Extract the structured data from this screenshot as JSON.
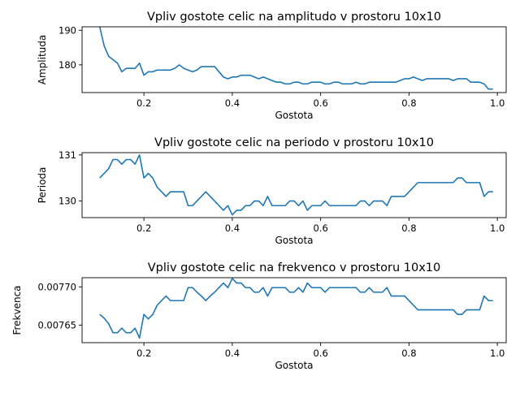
{
  "chart_data": [
    {
      "type": "line",
      "title": "Vpliv gostote celic na amplitudo v prostoru 10x10",
      "xlabel": "Gostota",
      "ylabel": "Amplituda",
      "xlim": [
        0.06,
        1.02
      ],
      "ylim": [
        172,
        191
      ],
      "xticks": [
        0.2,
        0.4,
        0.6,
        0.8,
        1.0
      ],
      "xtick_labels": [
        "0.2",
        "0.4",
        "0.6",
        "0.8",
        "1.0"
      ],
      "yticks": [
        180,
        190
      ],
      "ytick_labels": [
        "180",
        "190"
      ],
      "grid": false,
      "series": [
        {
          "color": "#1f77b4",
          "x": [
            0.1,
            0.11,
            0.12,
            0.13,
            0.14,
            0.15,
            0.16,
            0.17,
            0.18,
            0.19,
            0.2,
            0.21,
            0.22,
            0.23,
            0.24,
            0.25,
            0.26,
            0.27,
            0.28,
            0.29,
            0.3,
            0.31,
            0.32,
            0.33,
            0.34,
            0.35,
            0.36,
            0.37,
            0.38,
            0.39,
            0.4,
            0.41,
            0.42,
            0.43,
            0.44,
            0.45,
            0.46,
            0.47,
            0.48,
            0.49,
            0.5,
            0.51,
            0.52,
            0.53,
            0.54,
            0.55,
            0.56,
            0.57,
            0.58,
            0.59,
            0.6,
            0.61,
            0.62,
            0.63,
            0.64,
            0.65,
            0.66,
            0.67,
            0.68,
            0.69,
            0.7,
            0.71,
            0.72,
            0.73,
            0.74,
            0.75,
            0.76,
            0.77,
            0.78,
            0.79,
            0.8,
            0.81,
            0.82,
            0.83,
            0.84,
            0.85,
            0.86,
            0.87,
            0.88,
            0.89,
            0.9,
            0.91,
            0.92,
            0.93,
            0.94,
            0.95,
            0.96,
            0.97,
            0.98,
            0.99
          ],
          "y": [
            191.0,
            185.5,
            182.5,
            181.5,
            180.5,
            178.0,
            179.0,
            179.0,
            179.0,
            180.5,
            177.0,
            178.0,
            178.0,
            178.5,
            178.5,
            178.5,
            178.5,
            179.0,
            180.0,
            179.0,
            178.5,
            178.0,
            178.5,
            179.5,
            179.5,
            179.5,
            179.5,
            178.0,
            176.5,
            176.0,
            176.5,
            176.5,
            177.0,
            177.0,
            177.0,
            176.5,
            176.0,
            176.5,
            176.0,
            175.5,
            175.0,
            175.0,
            174.5,
            174.5,
            175.0,
            175.0,
            174.5,
            174.5,
            175.0,
            175.0,
            175.0,
            174.5,
            174.5,
            175.0,
            175.0,
            174.5,
            174.5,
            174.5,
            175.0,
            174.5,
            174.5,
            175.0,
            175.0,
            175.0,
            175.0,
            175.0,
            175.0,
            175.0,
            175.5,
            176.0,
            176.0,
            176.5,
            176.0,
            175.5,
            176.0,
            176.0,
            176.0,
            176.0,
            176.0,
            176.0,
            175.5,
            176.0,
            176.0,
            176.0,
            175.0,
            175.0,
            175.0,
            174.5,
            173.0,
            173.0
          ]
        }
      ]
    },
    {
      "type": "line",
      "title": "Vpliv gostote celic na periodo v prostoru 10x10",
      "xlabel": "Gostota",
      "ylabel": "Perioda",
      "xlim": [
        0.06,
        1.02
      ],
      "ylim": [
        129.64,
        131.05
      ],
      "xticks": [
        0.2,
        0.4,
        0.6,
        0.8,
        1.0
      ],
      "xtick_labels": [
        "0.2",
        "0.4",
        "0.6",
        "0.8",
        "1.0"
      ],
      "yticks": [
        130,
        131
      ],
      "ytick_labels": [
        "130",
        "131"
      ],
      "grid": false,
      "series": [
        {
          "color": "#1f77b4",
          "x": [
            0.1,
            0.11,
            0.12,
            0.13,
            0.14,
            0.15,
            0.16,
            0.17,
            0.18,
            0.19,
            0.2,
            0.21,
            0.22,
            0.23,
            0.24,
            0.25,
            0.26,
            0.27,
            0.28,
            0.29,
            0.3,
            0.31,
            0.32,
            0.33,
            0.34,
            0.35,
            0.36,
            0.37,
            0.38,
            0.39,
            0.4,
            0.41,
            0.42,
            0.43,
            0.44,
            0.45,
            0.46,
            0.47,
            0.48,
            0.49,
            0.5,
            0.51,
            0.52,
            0.53,
            0.54,
            0.55,
            0.56,
            0.57,
            0.58,
            0.59,
            0.6,
            0.61,
            0.62,
            0.63,
            0.64,
            0.65,
            0.66,
            0.67,
            0.68,
            0.69,
            0.7,
            0.71,
            0.72,
            0.73,
            0.74,
            0.75,
            0.76,
            0.77,
            0.78,
            0.79,
            0.8,
            0.81,
            0.82,
            0.83,
            0.84,
            0.85,
            0.86,
            0.87,
            0.88,
            0.89,
            0.9,
            0.91,
            0.92,
            0.93,
            0.94,
            0.95,
            0.96,
            0.97,
            0.98,
            0.99
          ],
          "y": [
            130.5,
            130.6,
            130.7,
            130.9,
            130.9,
            130.8,
            130.9,
            130.9,
            130.8,
            131.0,
            130.5,
            130.6,
            130.5,
            130.3,
            130.2,
            130.1,
            130.2,
            130.2,
            130.2,
            130.2,
            129.9,
            129.9,
            130.0,
            130.1,
            130.2,
            130.1,
            130.0,
            129.9,
            129.8,
            129.9,
            129.7,
            129.8,
            129.8,
            129.9,
            129.9,
            130.0,
            130.0,
            129.9,
            130.1,
            129.9,
            129.9,
            129.9,
            129.9,
            130.0,
            130.0,
            129.9,
            130.0,
            129.8,
            129.9,
            129.9,
            129.9,
            130.0,
            129.9,
            129.9,
            129.9,
            129.9,
            129.9,
            129.9,
            129.9,
            130.0,
            130.0,
            129.9,
            130.0,
            130.0,
            130.0,
            129.9,
            130.1,
            130.1,
            130.1,
            130.1,
            130.2,
            130.3,
            130.4,
            130.4,
            130.4,
            130.4,
            130.4,
            130.4,
            130.4,
            130.4,
            130.4,
            130.5,
            130.5,
            130.4,
            130.4,
            130.4,
            130.4,
            130.1,
            130.2,
            130.2
          ]
        }
      ]
    },
    {
      "type": "line",
      "title": "Vpliv gostote celic na frekvenco v prostoru 10x10",
      "xlabel": "Gostota",
      "ylabel": "Frekvenca",
      "xlim": [
        0.06,
        1.02
      ],
      "ylim": [
        0.007627,
        0.007712
      ],
      "xticks": [
        0.2,
        0.4,
        0.6,
        0.8,
        1.0
      ],
      "xtick_labels": [
        "0.2",
        "0.4",
        "0.6",
        "0.8",
        "1.0"
      ],
      "yticks": [
        0.00765,
        0.0077
      ],
      "ytick_labels": [
        "0.00765",
        "0.00770"
      ],
      "grid": false,
      "series": [
        {
          "color": "#1f77b4",
          "x": [
            0.1,
            0.11,
            0.12,
            0.13,
            0.14,
            0.15,
            0.16,
            0.17,
            0.18,
            0.19,
            0.2,
            0.21,
            0.22,
            0.23,
            0.24,
            0.25,
            0.26,
            0.27,
            0.28,
            0.29,
            0.3,
            0.31,
            0.32,
            0.33,
            0.34,
            0.35,
            0.36,
            0.37,
            0.38,
            0.39,
            0.4,
            0.41,
            0.42,
            0.43,
            0.44,
            0.45,
            0.46,
            0.47,
            0.48,
            0.49,
            0.5,
            0.51,
            0.52,
            0.53,
            0.54,
            0.55,
            0.56,
            0.57,
            0.58,
            0.59,
            0.6,
            0.61,
            0.62,
            0.63,
            0.64,
            0.65,
            0.66,
            0.67,
            0.68,
            0.69,
            0.7,
            0.71,
            0.72,
            0.73,
            0.74,
            0.75,
            0.76,
            0.77,
            0.78,
            0.79,
            0.8,
            0.81,
            0.82,
            0.83,
            0.84,
            0.85,
            0.86,
            0.87,
            0.88,
            0.89,
            0.9,
            0.91,
            0.92,
            0.93,
            0.94,
            0.95,
            0.96,
            0.97,
            0.98,
            0.99
          ],
          "y": [
            0.007664,
            0.007659,
            0.007652,
            0.00764,
            0.00764,
            0.007646,
            0.00764,
            0.00764,
            0.007646,
            0.007633,
            0.007664,
            0.007658,
            0.007664,
            0.007676,
            0.007682,
            0.007688,
            0.007682,
            0.007682,
            0.007682,
            0.007682,
            0.007699,
            0.007699,
            0.007693,
            0.007688,
            0.007682,
            0.007688,
            0.007693,
            0.007699,
            0.007705,
            0.007699,
            0.007711,
            0.007705,
            0.007705,
            0.007699,
            0.007699,
            0.007693,
            0.007693,
            0.007699,
            0.007688,
            0.007699,
            0.007699,
            0.007699,
            0.007699,
            0.007693,
            0.007693,
            0.007699,
            0.007693,
            0.007705,
            0.007699,
            0.007699,
            0.007699,
            0.007693,
            0.007699,
            0.007699,
            0.007699,
            0.007699,
            0.007699,
            0.007699,
            0.007699,
            0.007693,
            0.007693,
            0.007699,
            0.007693,
            0.007693,
            0.007693,
            0.007699,
            0.007688,
            0.007688,
            0.007688,
            0.007688,
            0.007682,
            0.007676,
            0.00767,
            0.00767,
            0.00767,
            0.00767,
            0.00767,
            0.00767,
            0.00767,
            0.00767,
            0.00767,
            0.007664,
            0.007664,
            0.00767,
            0.00767,
            0.00767,
            0.00767,
            0.007688,
            0.007682,
            0.007682
          ]
        }
      ]
    }
  ]
}
